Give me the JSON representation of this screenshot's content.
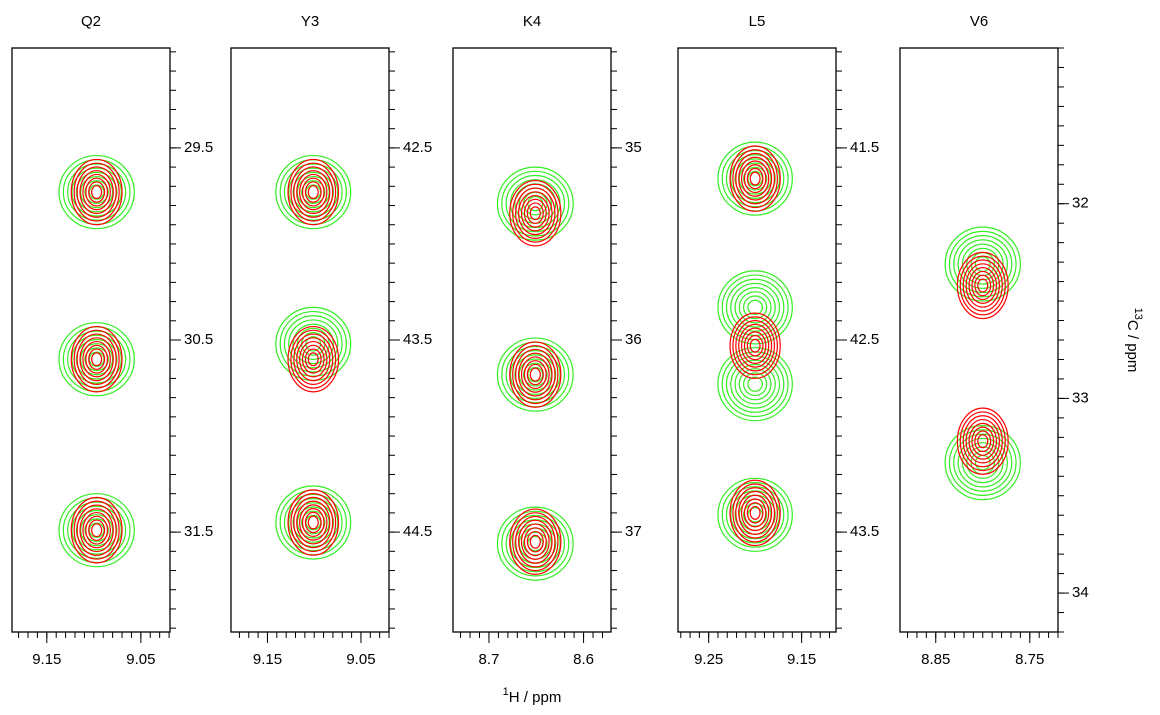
{
  "chart_data": [
    {
      "type": "contour",
      "title": "Q2",
      "xlim": [
        9.187,
        9.019
      ],
      "ylim": [
        28.98,
        32.02
      ],
      "xticks": [
        9.15,
        9.05
      ],
      "yticks": [
        29.5,
        30.5,
        31.5
      ],
      "xminor": 0.01,
      "yminor": 0.1,
      "series": [
        {
          "color": "#ff0000",
          "x": [
            9.097,
            9.097,
            9.097
          ],
          "y": [
            29.73,
            30.6,
            31.49
          ]
        },
        {
          "color": "#33ee22",
          "x": [
            9.097,
            9.097,
            9.097
          ],
          "y": [
            29.73,
            30.6,
            31.49
          ]
        }
      ]
    },
    {
      "type": "contour",
      "title": "Y3",
      "xlim": [
        9.189,
        9.02
      ],
      "ylim": [
        41.98,
        45.02
      ],
      "xticks": [
        9.15,
        9.05
      ],
      "yticks": [
        42.5,
        43.5,
        44.5
      ],
      "xminor": 0.01,
      "yminor": 0.1,
      "series": [
        {
          "color": "#ff0000",
          "x": [
            9.101,
            9.101,
            9.101
          ],
          "y": [
            42.73,
            43.6,
            44.45
          ]
        },
        {
          "color": "#33ee22",
          "x": [
            9.101,
            9.101,
            9.101
          ],
          "y": [
            42.73,
            43.52,
            44.45
          ]
        }
      ]
    },
    {
      "type": "contour",
      "title": "K4",
      "xlim": [
        8.738,
        8.571
      ],
      "ylim": [
        34.48,
        37.52
      ],
      "xticks": [
        8.7,
        8.6
      ],
      "yticks": [
        35.0,
        36.0,
        37.0
      ],
      "xminor": 0.01,
      "yminor": 0.1,
      "series": [
        {
          "color": "#ff0000",
          "x": [
            8.651,
            8.651,
            8.651
          ],
          "y": [
            35.34,
            36.18,
            37.05
          ]
        },
        {
          "color": "#33ee22",
          "x": [
            8.651,
            8.651,
            8.651
          ],
          "y": [
            35.29,
            36.18,
            37.06
          ]
        }
      ]
    },
    {
      "type": "contour",
      "title": "L5",
      "xlim": [
        9.283,
        9.113
      ],
      "ylim": [
        40.98,
        44.02
      ],
      "xticks": [
        9.25,
        9.15
      ],
      "yticks": [
        41.5,
        42.5,
        43.5
      ],
      "xminor": 0.01,
      "yminor": 0.1,
      "series": [
        {
          "color": "#ff0000",
          "x": [
            9.2,
            9.2,
            9.2
          ],
          "y": [
            41.66,
            42.53,
            43.4
          ]
        },
        {
          "color": "#33ee22",
          "x": [
            9.2,
            9.2,
            9.2,
            9.2
          ],
          "y": [
            41.66,
            42.33,
            42.73,
            43.41
          ]
        }
      ]
    },
    {
      "type": "contour",
      "title": "V6",
      "xlim": [
        8.888,
        8.72
      ],
      "ylim": [
        31.2,
        34.2
      ],
      "xticks": [
        8.85,
        8.75
      ],
      "yticks": [
        32.0,
        33.0,
        34.0
      ],
      "xminor": 0.01,
      "yminor": 0.1,
      "series": [
        {
          "color": "#ff0000",
          "x": [
            8.8,
            8.8
          ],
          "y": [
            32.42,
            33.22
          ]
        },
        {
          "color": "#33ee22",
          "x": [
            8.8,
            8.8
          ],
          "y": [
            32.31,
            33.33
          ]
        }
      ]
    }
  ],
  "xlabel": {
    "sup": "1",
    "text": "H  / ppm"
  },
  "ylabel": {
    "sup": "13",
    "text": "C  / ppm"
  }
}
